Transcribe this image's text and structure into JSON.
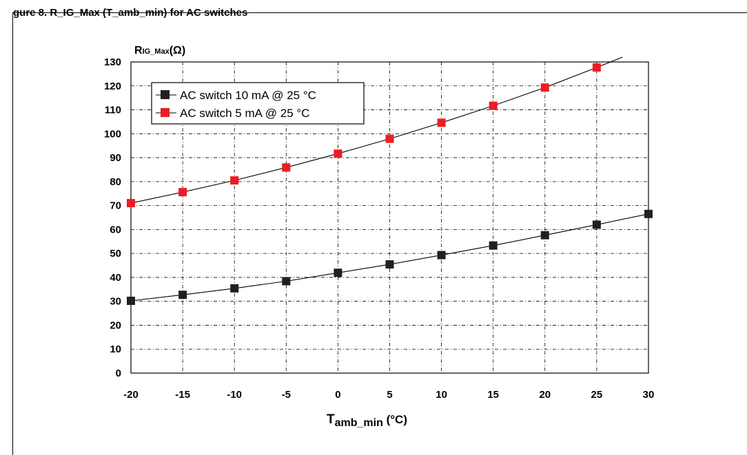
{
  "caption": "gure 8.   R_IG_Max (T_amb_min) for AC switches",
  "chart_data": {
    "type": "scatter",
    "ylabel": "RIG_Max(Ω)",
    "ylabel_main": "R",
    "ylabel_sub": "IG_Max",
    "ylabel_tail": "(Ω)",
    "xlabel": "Tamb_min (°C)",
    "xlabel_main": "T",
    "xlabel_sub": "amb_min",
    "xlabel_tail": " (°C)",
    "xlim": [
      -20,
      30
    ],
    "ylim": [
      0,
      130
    ],
    "xticks": [
      -20,
      -15,
      -10,
      -5,
      0,
      5,
      10,
      15,
      20,
      25,
      30
    ],
    "yticks": [
      0,
      10,
      20,
      30,
      40,
      50,
      60,
      70,
      80,
      90,
      100,
      110,
      120,
      130
    ],
    "grid": true,
    "legend_position": "top-left",
    "series": [
      {
        "name": "AC switch 10 mA @ 25 °C",
        "color": "#231f20",
        "x": [
          -20,
          -15,
          -10,
          -5,
          0,
          5,
          10,
          15,
          20,
          25,
          30
        ],
        "y": [
          30.2,
          32.7,
          35.4,
          38.4,
          41.9,
          45.4,
          49.3,
          53.3,
          57.6,
          62.0,
          66.5
        ]
      },
      {
        "name": "AC switch 5 mA @ 25 °C",
        "color": "#ed1c24",
        "x": [
          -20,
          -15,
          -10,
          -5,
          0,
          5,
          10,
          15,
          20,
          25
        ],
        "y": [
          71.0,
          75.6,
          80.5,
          85.9,
          91.7,
          97.9,
          104.6,
          111.7,
          119.3,
          127.7
        ]
      }
    ],
    "fit_line_end": [
      27.5,
      132
    ]
  }
}
